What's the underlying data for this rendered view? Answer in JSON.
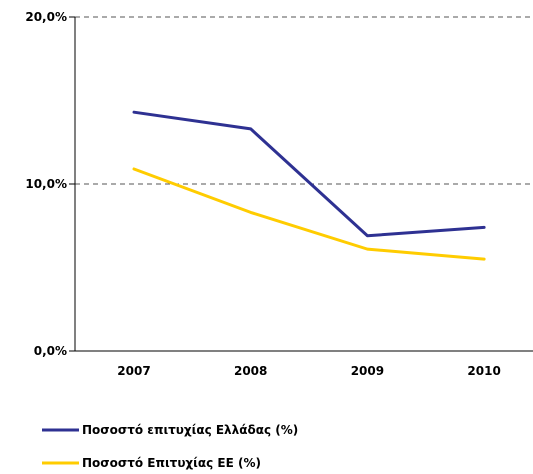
{
  "chart_data": {
    "type": "line",
    "categories": [
      "2007",
      "2008",
      "2009",
      "2010"
    ],
    "series": [
      {
        "name": "Ποσοστό επιτυχίας Ελλάδας (%)",
        "color": "#2E3192",
        "values": [
          14.3,
          13.3,
          6.9,
          7.4
        ]
      },
      {
        "name": "Ποσοστό Επιτυχίας ΕΕ (%)",
        "color": "#FFCC00",
        "values": [
          10.9,
          8.3,
          6.1,
          5.5
        ]
      }
    ],
    "ylim": [
      0,
      20
    ],
    "yticks": [
      {
        "value": 0,
        "label": "0,0%"
      },
      {
        "value": 10,
        "label": "10,0%"
      },
      {
        "value": 20,
        "label": "20,0%"
      }
    ],
    "grid": "dashed horizontal at 10 and 20",
    "legend_position": "bottom-left",
    "title": "",
    "xlabel": "",
    "ylabel": ""
  }
}
